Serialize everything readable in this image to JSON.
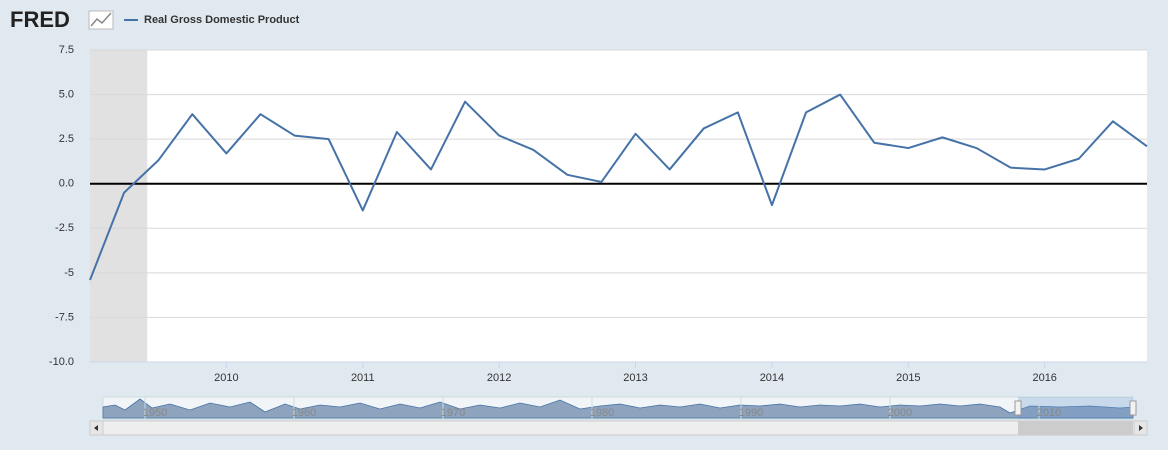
{
  "header": {
    "logo": "FRED"
  },
  "chart_data": {
    "type": "line",
    "x": [
      2009,
      2009.25,
      2009.5,
      2009.75,
      2010,
      2010.25,
      2010.5,
      2010.75,
      2011,
      2011.25,
      2011.5,
      2011.75,
      2012,
      2012.25,
      2012.5,
      2012.75,
      2013,
      2013.25,
      2013.5,
      2013.75,
      2014,
      2014.25,
      2014.5,
      2014.75,
      2015,
      2015.25,
      2015.5,
      2015.75,
      2016,
      2016.25,
      2016.5,
      2016.75
    ],
    "series": [
      {
        "name": "Real Gross Domestic Product",
        "color": "#4572a7",
        "values": [
          -5.4,
          -0.5,
          1.3,
          3.9,
          1.7,
          3.9,
          2.7,
          2.5,
          -1.5,
          2.9,
          0.8,
          4.6,
          2.7,
          1.9,
          0.5,
          0.1,
          2.8,
          0.8,
          3.1,
          4.0,
          -1.2,
          4.0,
          5.0,
          2.3,
          2.0,
          2.6,
          2.0,
          0.9,
          0.8,
          1.4,
          3.5,
          2.1
        ]
      }
    ],
    "xlim": [
      2009,
      2016.75
    ],
    "xticks": [
      2010,
      2011,
      2012,
      2013,
      2014,
      2015,
      2016
    ],
    "ylim": [
      -10,
      7.5
    ],
    "yticks": [
      {
        "value": -10,
        "label": "-10.0"
      },
      -7.5,
      -5,
      -2.5,
      {
        "value": 0,
        "label": "0.0"
      },
      2.5,
      {
        "value": 5,
        "label": "5.0"
      },
      7.5
    ],
    "recession": [
      2009,
      2009.42
    ],
    "grid": true,
    "navigator_ticks": [
      1950,
      1960,
      1970,
      1980,
      1990,
      2000,
      2010
    ]
  }
}
